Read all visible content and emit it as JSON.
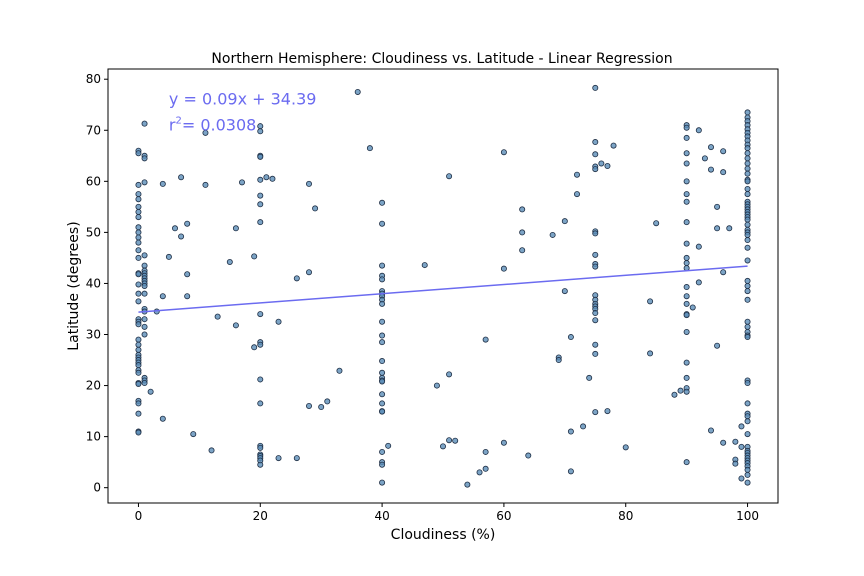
{
  "chart_data": {
    "type": "scatter",
    "title": "Northern Hemisphere: Cloudiness vs. Latitude - Linear Regression",
    "xlabel": "Cloudiness (%)",
    "ylabel": "Latitude (degrees)",
    "xlim": [
      -5,
      105
    ],
    "ylim": [
      -3,
      82
    ],
    "xticks": [
      0,
      20,
      40,
      60,
      80,
      100
    ],
    "yticks": [
      0,
      10,
      20,
      30,
      40,
      50,
      60,
      70,
      80
    ],
    "grid": false,
    "point_color": "#5b8db8",
    "point_edge": "#1f2f45",
    "line_color": "#6b6bf0",
    "annotation": {
      "equation": "y = 0.09x + 34.39",
      "r2_prefix": "r",
      "r2_sup": "2",
      "r2_value": "=  0.0308",
      "x": 5,
      "y": 75,
      "y2": 70
    },
    "regression": {
      "slope": 0.09,
      "intercept": 34.39
    },
    "points": [
      [
        0,
        66
      ],
      [
        0,
        65.5
      ],
      [
        0,
        59.3
      ],
      [
        0,
        57.5
      ],
      [
        0,
        56.5
      ],
      [
        0,
        55
      ],
      [
        0,
        54
      ],
      [
        0,
        53
      ],
      [
        0,
        51
      ],
      [
        0,
        50
      ],
      [
        0,
        49
      ],
      [
        0,
        48
      ],
      [
        0,
        46.5
      ],
      [
        0,
        45
      ],
      [
        0,
        42
      ],
      [
        0,
        41.8
      ],
      [
        0,
        39.8
      ],
      [
        0,
        38
      ],
      [
        0,
        36.5
      ],
      [
        0,
        33
      ],
      [
        0,
        32.5
      ],
      [
        0,
        32
      ],
      [
        0,
        29
      ],
      [
        0,
        28
      ],
      [
        0,
        27
      ],
      [
        0,
        26
      ],
      [
        0,
        25.5
      ],
      [
        0,
        25
      ],
      [
        0,
        24.5
      ],
      [
        0,
        24
      ],
      [
        0,
        23
      ],
      [
        0,
        22.5
      ],
      [
        0,
        20.5
      ],
      [
        0,
        20.3
      ],
      [
        0,
        17
      ],
      [
        0,
        16.5
      ],
      [
        0,
        14.5
      ],
      [
        0,
        11
      ],
      [
        0,
        10.8
      ],
      [
        1,
        71.3
      ],
      [
        1,
        65
      ],
      [
        1,
        64.5
      ],
      [
        1,
        59.8
      ],
      [
        1,
        45.5
      ],
      [
        1,
        43.5
      ],
      [
        1,
        42.5
      ],
      [
        1,
        42
      ],
      [
        1,
        41.5
      ],
      [
        1,
        41
      ],
      [
        1,
        40.5
      ],
      [
        1,
        40
      ],
      [
        1,
        39.5
      ],
      [
        1,
        38
      ],
      [
        1,
        35
      ],
      [
        1,
        34.5
      ],
      [
        1,
        33
      ],
      [
        1,
        31.5
      ],
      [
        1,
        30
      ],
      [
        1,
        21.5
      ],
      [
        1,
        21
      ],
      [
        1,
        20.5
      ],
      [
        2,
        18.8
      ],
      [
        3,
        34.5
      ],
      [
        4,
        59.5
      ],
      [
        4,
        37.5
      ],
      [
        4,
        13.5
      ],
      [
        5,
        45.2
      ],
      [
        6,
        50.8
      ],
      [
        7,
        60.8
      ],
      [
        7,
        49.2
      ],
      [
        8,
        51.7
      ],
      [
        8,
        41.8
      ],
      [
        8,
        37.5
      ],
      [
        9,
        10.5
      ],
      [
        11,
        69.5
      ],
      [
        11,
        59.3
      ],
      [
        12,
        7.3
      ],
      [
        13,
        33.5
      ],
      [
        15,
        44.2
      ],
      [
        16,
        50.8
      ],
      [
        16,
        31.8
      ],
      [
        17,
        59.8
      ],
      [
        19,
        45.3
      ],
      [
        19,
        27.5
      ],
      [
        20,
        70.8
      ],
      [
        20,
        69.8
      ],
      [
        20,
        65
      ],
      [
        20,
        64.8
      ],
      [
        20,
        60.3
      ],
      [
        20,
        57.2
      ],
      [
        20,
        55.5
      ],
      [
        20,
        52
      ],
      [
        20,
        34
      ],
      [
        20,
        28.5
      ],
      [
        20,
        28
      ],
      [
        20,
        21.2
      ],
      [
        20,
        16.5
      ],
      [
        20,
        8.2
      ],
      [
        20,
        7.8
      ],
      [
        20,
        6.5
      ],
      [
        20,
        6.2
      ],
      [
        20,
        5.8
      ],
      [
        20,
        5.3
      ],
      [
        20,
        4.5
      ],
      [
        21,
        60.8
      ],
      [
        22,
        60.5
      ],
      [
        23,
        32.5
      ],
      [
        23,
        5.8
      ],
      [
        26,
        41
      ],
      [
        26,
        5.8
      ],
      [
        28,
        59.5
      ],
      [
        28,
        42.2
      ],
      [
        28,
        16
      ],
      [
        29,
        54.7
      ],
      [
        30,
        15.8
      ],
      [
        31,
        16.9
      ],
      [
        33,
        22.9
      ],
      [
        36,
        77.5
      ],
      [
        38,
        66.5
      ],
      [
        40,
        55.8
      ],
      [
        40,
        51.7
      ],
      [
        40,
        43.5
      ],
      [
        40,
        41.5
      ],
      [
        40,
        40.8
      ],
      [
        40,
        38.5
      ],
      [
        40,
        38
      ],
      [
        40,
        37.5
      ],
      [
        40,
        36.8
      ],
      [
        40,
        36
      ],
      [
        40,
        32.5
      ],
      [
        40,
        29.8
      ],
      [
        40,
        28.5
      ],
      [
        40,
        24.8
      ],
      [
        40,
        22.5
      ],
      [
        40,
        21.5
      ],
      [
        40,
        21
      ],
      [
        40,
        20.8
      ],
      [
        40,
        18.3
      ],
      [
        40,
        16.5
      ],
      [
        40,
        15
      ],
      [
        40,
        14.9
      ],
      [
        40,
        7
      ],
      [
        40,
        5
      ],
      [
        40,
        4.5
      ],
      [
        40,
        1
      ],
      [
        41,
        8.2
      ],
      [
        47,
        43.6
      ],
      [
        49,
        20
      ],
      [
        50,
        8.1
      ],
      [
        51,
        61
      ],
      [
        51,
        22.2
      ],
      [
        51,
        9.3
      ],
      [
        52,
        9.2
      ],
      [
        54,
        0.6
      ],
      [
        56,
        3
      ],
      [
        57,
        29
      ],
      [
        57,
        7
      ],
      [
        57,
        3.7
      ],
      [
        60,
        65.7
      ],
      [
        60,
        42.9
      ],
      [
        60,
        8.8
      ],
      [
        63,
        54.5
      ],
      [
        63,
        50
      ],
      [
        63,
        46.5
      ],
      [
        64,
        6.3
      ],
      [
        68,
        49.5
      ],
      [
        69,
        25.5
      ],
      [
        69,
        25
      ],
      [
        70,
        52.2
      ],
      [
        70,
        38.5
      ],
      [
        71,
        29.5
      ],
      [
        71,
        11
      ],
      [
        71,
        3.2
      ],
      [
        72,
        61.3
      ],
      [
        72,
        57.5
      ],
      [
        73,
        12
      ],
      [
        74,
        21.5
      ],
      [
        75,
        78.3
      ],
      [
        75,
        67.7
      ],
      [
        75,
        65.3
      ],
      [
        75,
        62.9
      ],
      [
        75,
        62.4
      ],
      [
        75,
        50.2
      ],
      [
        75,
        49.8
      ],
      [
        75,
        45.6
      ],
      [
        75,
        43.8
      ],
      [
        75,
        43.3
      ],
      [
        75,
        37.7
      ],
      [
        75,
        36.8
      ],
      [
        75,
        36
      ],
      [
        75,
        35.5
      ],
      [
        75,
        35
      ],
      [
        75,
        34.2
      ],
      [
        75,
        32.8
      ],
      [
        75,
        28
      ],
      [
        75,
        26.2
      ],
      [
        75,
        14.8
      ],
      [
        76,
        63.5
      ],
      [
        77,
        63
      ],
      [
        77,
        15
      ],
      [
        78,
        67
      ],
      [
        80,
        7.9
      ],
      [
        84,
        36.5
      ],
      [
        84,
        26.3
      ],
      [
        85,
        51.8
      ],
      [
        88,
        18.2
      ],
      [
        89,
        19
      ],
      [
        90,
        71
      ],
      [
        90,
        70.5
      ],
      [
        90,
        68.5
      ],
      [
        90,
        65.5
      ],
      [
        90,
        63.5
      ],
      [
        90,
        60
      ],
      [
        90,
        57.5
      ],
      [
        90,
        56
      ],
      [
        90,
        52
      ],
      [
        90,
        47.8
      ],
      [
        90,
        45
      ],
      [
        90,
        44
      ],
      [
        90,
        43
      ],
      [
        90,
        39.3
      ],
      [
        90,
        37.5
      ],
      [
        90,
        36
      ],
      [
        90,
        34
      ],
      [
        90,
        33.8
      ],
      [
        90,
        30.5
      ],
      [
        90,
        24.5
      ],
      [
        90,
        21.5
      ],
      [
        90,
        19.5
      ],
      [
        90,
        18.8
      ],
      [
        90,
        5
      ],
      [
        91,
        35.3
      ],
      [
        92,
        70
      ],
      [
        92,
        47.2
      ],
      [
        92,
        40.2
      ],
      [
        93,
        64.5
      ],
      [
        94,
        66.7
      ],
      [
        94,
        62.3
      ],
      [
        94,
        11.2
      ],
      [
        95,
        55
      ],
      [
        95,
        50.8
      ],
      [
        95,
        27.8
      ],
      [
        96,
        65.9
      ],
      [
        96,
        61.8
      ],
      [
        96,
        42.2
      ],
      [
        96,
        8.8
      ],
      [
        97,
        50.8
      ],
      [
        98,
        9
      ],
      [
        98,
        5.5
      ],
      [
        98,
        4.7
      ],
      [
        99,
        12
      ],
      [
        99,
        1.8
      ],
      [
        99,
        8
      ],
      [
        100,
        73.5
      ],
      [
        100,
        72.5
      ],
      [
        100,
        71.8
      ],
      [
        100,
        71
      ],
      [
        100,
        70.2
      ],
      [
        100,
        69.5
      ],
      [
        100,
        68.8
      ],
      [
        100,
        68
      ],
      [
        100,
        67.2
      ],
      [
        100,
        66.5
      ],
      [
        100,
        65.5
      ],
      [
        100,
        64.5
      ],
      [
        100,
        63.5
      ],
      [
        100,
        62.5
      ],
      [
        100,
        61.5
      ],
      [
        100,
        60.3
      ],
      [
        100,
        60
      ],
      [
        100,
        58.5
      ],
      [
        100,
        57.5
      ],
      [
        100,
        56
      ],
      [
        100,
        55.5
      ],
      [
        100,
        55
      ],
      [
        100,
        54.5
      ],
      [
        100,
        54
      ],
      [
        100,
        53.5
      ],
      [
        100,
        53
      ],
      [
        100,
        52.5
      ],
      [
        100,
        51.5
      ],
      [
        100,
        50.5
      ],
      [
        100,
        50
      ],
      [
        100,
        49.5
      ],
      [
        100,
        48.5
      ],
      [
        100,
        47
      ],
      [
        100,
        44.5
      ],
      [
        100,
        40.5
      ],
      [
        100,
        39.5
      ],
      [
        100,
        38.5
      ],
      [
        100,
        36.8
      ],
      [
        100,
        32.5
      ],
      [
        100,
        31.5
      ],
      [
        100,
        30.5
      ],
      [
        100,
        29.8
      ],
      [
        100,
        29.5
      ],
      [
        100,
        21
      ],
      [
        100,
        20.5
      ],
      [
        100,
        16.5
      ],
      [
        100,
        14.5
      ],
      [
        100,
        14
      ],
      [
        100,
        13
      ],
      [
        100,
        10.5
      ],
      [
        100,
        8
      ],
      [
        100,
        7.2
      ],
      [
        100,
        6.8
      ],
      [
        100,
        6.3
      ],
      [
        100,
        5.8
      ],
      [
        100,
        5.3
      ],
      [
        100,
        4.8
      ],
      [
        100,
        4.2
      ],
      [
        100,
        3.5
      ],
      [
        100,
        2.5
      ],
      [
        100,
        1
      ]
    ]
  }
}
